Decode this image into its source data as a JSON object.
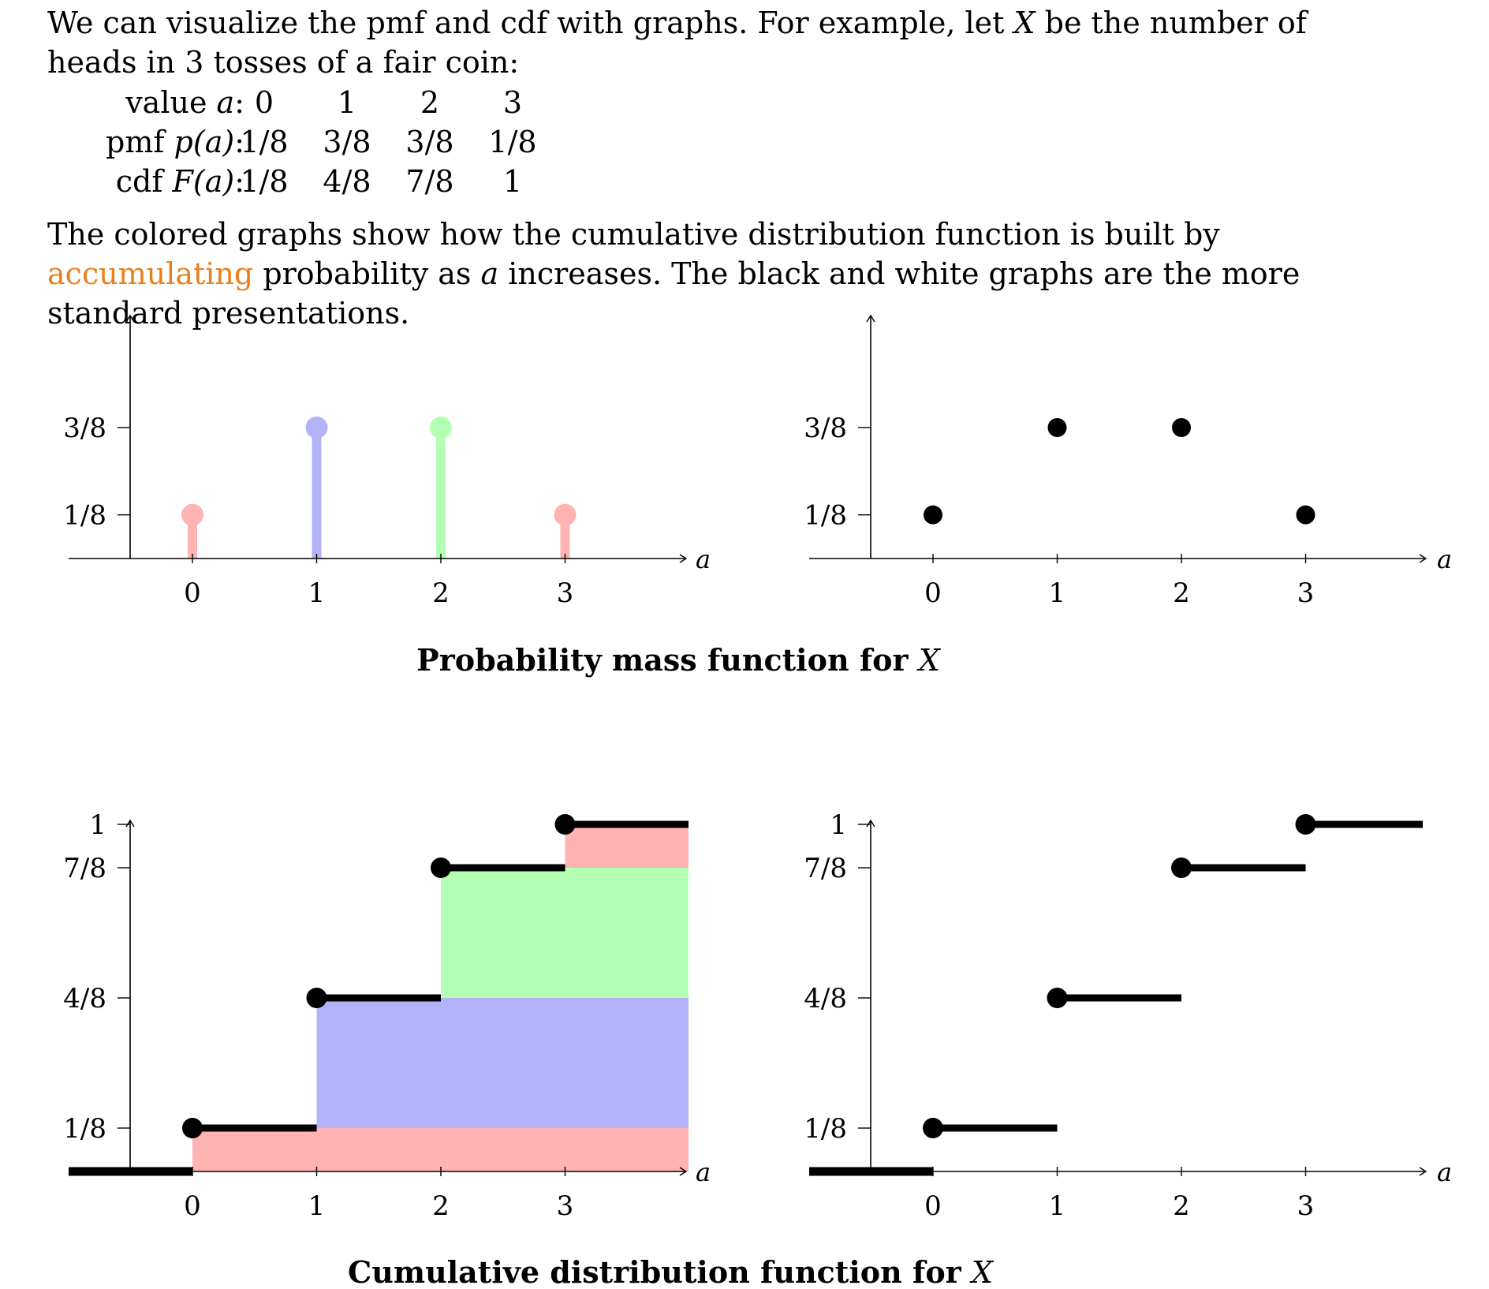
{
  "text": {
    "p1_a": "We can visualize the pmf and cdf with graphs. For example, let ",
    "p1_var": "X",
    "p1_b": " be the number of heads in 3 tosses of a fair coin:",
    "p2_a": "The colored graphs show how the cumulative distribution function is built by ",
    "p2_highlight": "accumulating",
    "p2_b": " probability as ",
    "p2_var": "a",
    "p2_c": " increases. The black and white graphs are the more standard presentations."
  },
  "table": {
    "rows": [
      {
        "label_pre": "value ",
        "label_var": "a",
        "label_post": ":",
        "cells": [
          "0",
          "1",
          "2",
          "3"
        ]
      },
      {
        "label_pre": "pmf ",
        "label_var": "p(a)",
        "label_post": ":",
        "cells": [
          "1/8",
          "3/8",
          "3/8",
          "1/8"
        ]
      },
      {
        "label_pre": "cdf ",
        "label_var": "F(a)",
        "label_post": ":",
        "cells": [
          "1/8",
          "4/8",
          "7/8",
          "1"
        ]
      }
    ]
  },
  "colors": {
    "red": "#ffb3b3",
    "blue": "#b3b3f9",
    "green": "#b3ffb3",
    "accent": "#e8801e"
  },
  "chart_data": [
    {
      "type": "stem",
      "id": "pmf-colored",
      "x": [
        0,
        1,
        2,
        3
      ],
      "y": [
        0.125,
        0.375,
        0.375,
        0.125
      ],
      "point_colors": [
        "#ffb3b3",
        "#b3b3f9",
        "#b3ffb3",
        "#ffb3b3"
      ],
      "yticks": [
        {
          "value": 0.125,
          "label": "1/8"
        },
        {
          "value": 0.375,
          "label": "3/8"
        }
      ],
      "xticks": [
        "0",
        "1",
        "2",
        "3"
      ],
      "xlabel": "a"
    },
    {
      "type": "scatter",
      "id": "pmf-standard",
      "x": [
        0,
        1,
        2,
        3
      ],
      "y": [
        0.125,
        0.375,
        0.375,
        0.125
      ],
      "yticks": [
        {
          "value": 0.125,
          "label": "1/8"
        },
        {
          "value": 0.375,
          "label": "3/8"
        }
      ],
      "xticks": [
        "0",
        "1",
        "2",
        "3"
      ],
      "xlabel": "a"
    },
    {
      "type": "area",
      "id": "cdf-colored",
      "steps": [
        {
          "x": 0,
          "y": 0.125
        },
        {
          "x": 1,
          "y": 0.5
        },
        {
          "x": 2,
          "y": 0.875
        },
        {
          "x": 3,
          "y": 1
        }
      ],
      "bands": [
        {
          "x_start": 0,
          "y_low": 0,
          "y_high": 0.125,
          "color": "#ffb3b3"
        },
        {
          "x_start": 1,
          "y_low": 0.125,
          "y_high": 0.5,
          "color": "#b3b3f9"
        },
        {
          "x_start": 2,
          "y_low": 0.5,
          "y_high": 0.875,
          "color": "#b3ffb3"
        },
        {
          "x_start": 3,
          "y_low": 0.875,
          "y_high": 1,
          "color": "#ffb3b3"
        }
      ],
      "yticks": [
        {
          "value": 0.125,
          "label": "1/8"
        },
        {
          "value": 0.5,
          "label": "4/8"
        },
        {
          "value": 0.875,
          "label": "7/8"
        },
        {
          "value": 1,
          "label": "1"
        }
      ],
      "xticks": [
        "0",
        "1",
        "2",
        "3"
      ],
      "xlabel": "a"
    },
    {
      "type": "line",
      "id": "cdf-standard",
      "steps": [
        {
          "x": 0,
          "y": 0.125
        },
        {
          "x": 1,
          "y": 0.5
        },
        {
          "x": 2,
          "y": 0.875
        },
        {
          "x": 3,
          "y": 1
        }
      ],
      "yticks": [
        {
          "value": 0.125,
          "label": "1/8"
        },
        {
          "value": 0.5,
          "label": "4/8"
        },
        {
          "value": 0.875,
          "label": "7/8"
        },
        {
          "value": 1,
          "label": "1"
        }
      ],
      "xticks": [
        "0",
        "1",
        "2",
        "3"
      ],
      "xlabel": "a"
    }
  ],
  "captions": {
    "pmf_pre": "Probability mass function for ",
    "pmf_var": "X",
    "cdf_pre": "Cumulative distribution function for ",
    "cdf_var": "X"
  }
}
